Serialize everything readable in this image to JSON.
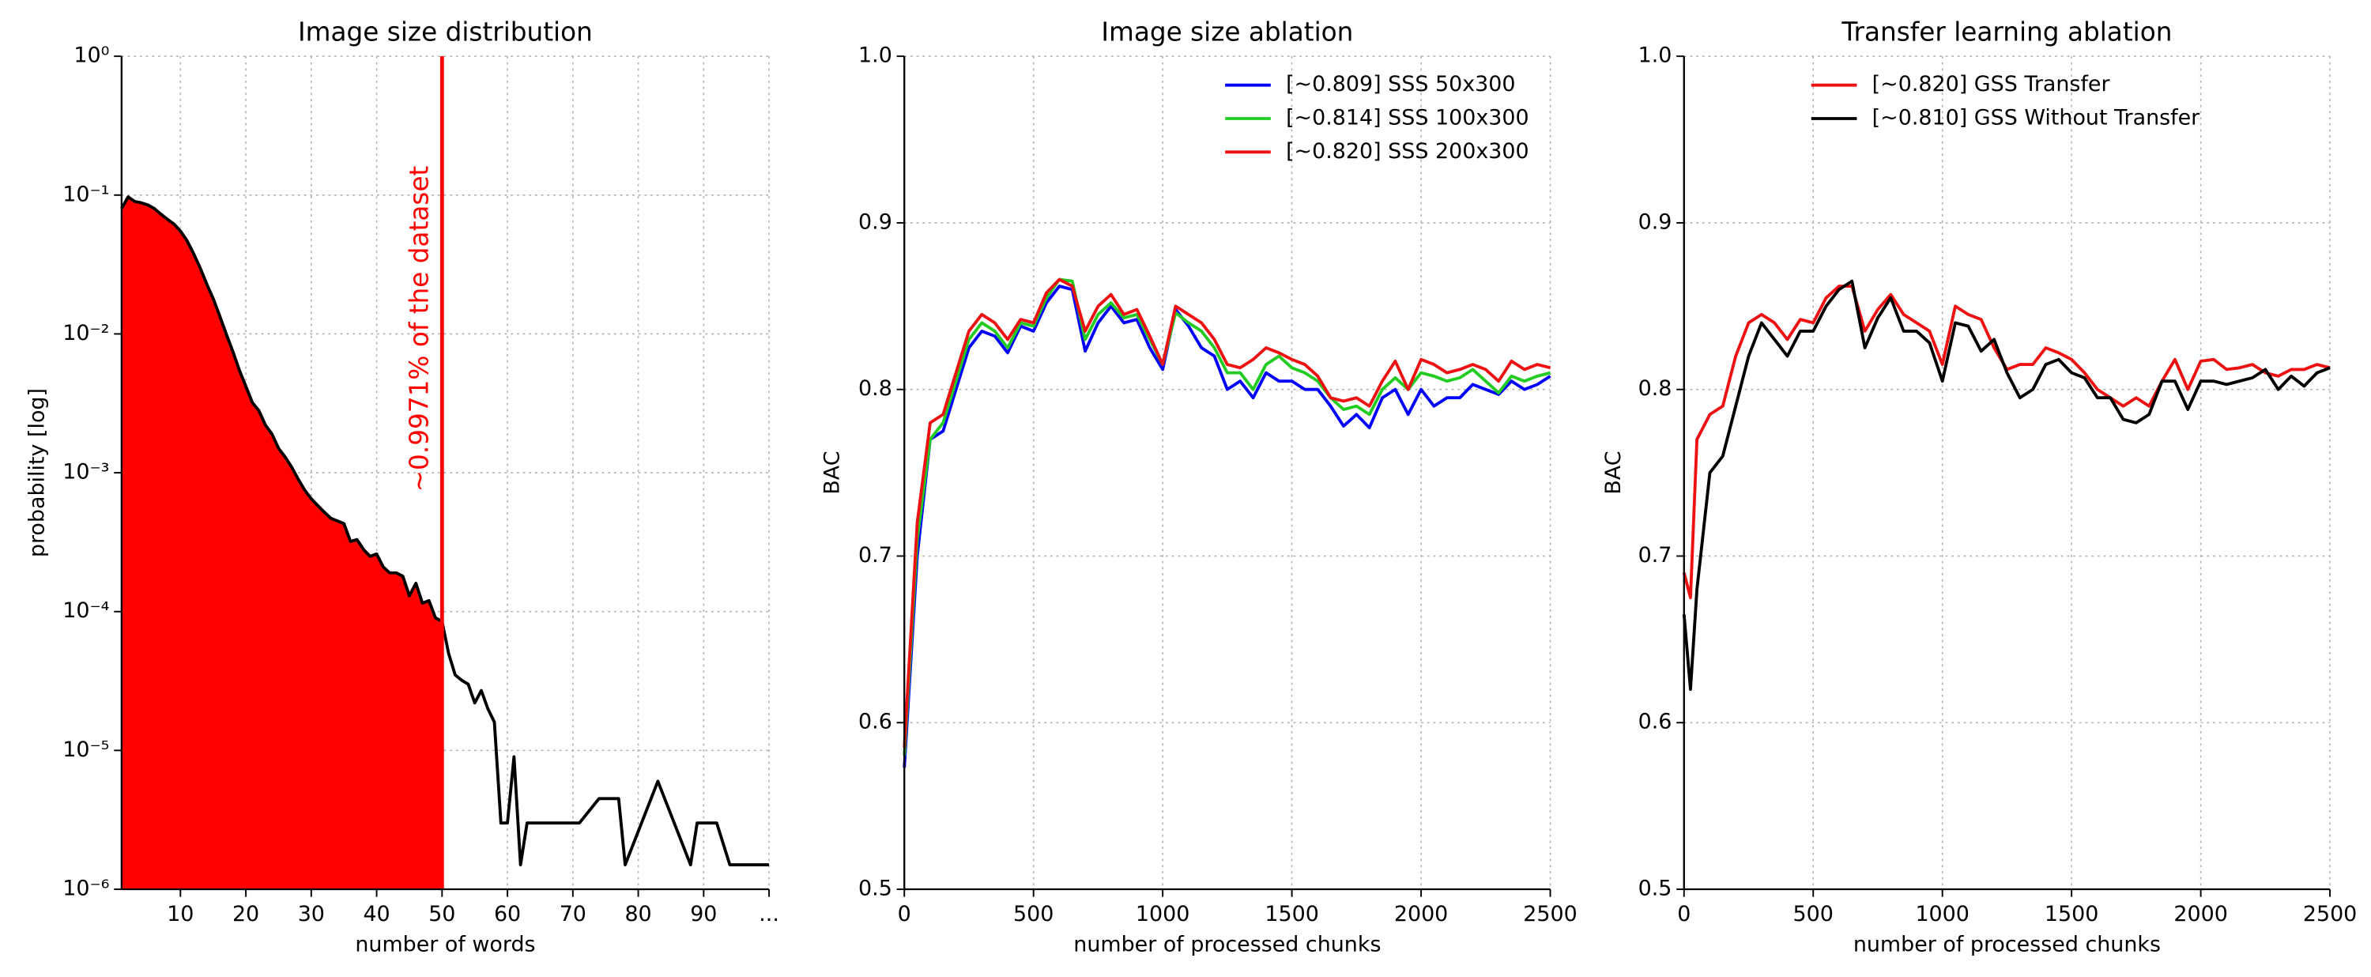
{
  "chart_data": [
    {
      "type": "line",
      "title": "Image size distribution",
      "xlabel": "number of words",
      "ylabel": "probability [log]",
      "yscale": "log",
      "grid": true,
      "xlim": [
        1,
        100
      ],
      "xticks": [
        10,
        20,
        30,
        40,
        50,
        60,
        70,
        80,
        90,
        {
          "value": 100,
          "label": "..."
        }
      ],
      "ylim": [
        1e-06,
        1
      ],
      "yticks": [
        {
          "value": 1e-06,
          "label": "10⁻⁶"
        },
        {
          "value": 1e-05,
          "label": "10⁻⁵"
        },
        {
          "value": 0.0001,
          "label": "10⁻⁴"
        },
        {
          "value": 0.001,
          "label": "10⁻³"
        },
        {
          "value": 0.01,
          "label": "10⁻²"
        },
        {
          "value": 0.1,
          "label": "10⁻¹"
        },
        {
          "value": 1,
          "label": "10⁰"
        }
      ],
      "fill_until": 50,
      "fill_color": "#ff0000",
      "vline": {
        "x": 50,
        "color": "#ff0000",
        "label": "~0.9971% of the dataset"
      },
      "x": [
        1,
        2,
        3,
        4,
        5,
        6,
        7,
        8,
        9,
        10,
        11,
        12,
        13,
        14,
        15,
        16,
        17,
        18,
        19,
        20,
        21,
        22,
        23,
        24,
        25,
        26,
        27,
        28,
        29,
        30,
        31,
        32,
        33,
        34,
        35,
        36,
        37,
        38,
        39,
        40,
        41,
        42,
        43,
        44,
        45,
        46,
        47,
        48,
        49,
        50,
        51,
        52,
        53,
        54,
        55,
        56,
        57,
        58,
        59,
        60,
        61,
        62,
        63,
        64,
        71,
        74,
        77,
        78,
        83,
        88,
        89,
        92,
        94,
        100
      ],
      "series": [
        {
          "color": "#000000",
          "values": [
            0.08,
            0.097,
            0.09,
            0.088,
            0.085,
            0.08,
            0.073,
            0.067,
            0.062,
            0.055,
            0.047,
            0.038,
            0.03,
            0.023,
            0.018,
            0.0135,
            0.01,
            0.0075,
            0.0055,
            0.0042,
            0.0032,
            0.0028,
            0.0022,
            0.0019,
            0.0015,
            0.0013,
            0.0011,
            0.0009,
            0.00075,
            0.00065,
            0.00058,
            0.00052,
            0.00047,
            0.00045,
            0.00043,
            0.00032,
            0.00033,
            0.00028,
            0.00025,
            0.00026,
            0.00021,
            0.00019,
            0.00019,
            0.00018,
            0.00013,
            0.00016,
            0.000115,
            0.00012,
            9e-05,
            8.5e-05,
            5e-05,
            3.5e-05,
            3.2e-05,
            3e-05,
            2.2e-05,
            2.7e-05,
            2e-05,
            1.6e-05,
            3e-06,
            3e-06,
            9e-06,
            1.5e-06,
            3e-06,
            3e-06,
            3e-06,
            4.5e-06,
            4.5e-06,
            1.5e-06,
            6e-06,
            1.5e-06,
            3e-06,
            3e-06,
            1.5e-06,
            1.5e-06
          ]
        }
      ]
    },
    {
      "type": "line",
      "title": "Image size ablation",
      "xlabel": "number of processed chunks",
      "ylabel": "BAC",
      "grid": true,
      "legend": "upper right",
      "xlim": [
        0,
        2500
      ],
      "xticks": [
        0,
        500,
        1000,
        1500,
        2000,
        2500
      ],
      "ylim": [
        0.5,
        1
      ],
      "yticks": [
        0.5,
        0.6,
        0.7,
        0.8,
        0.9,
        {
          "value": 1,
          "label": "1.0"
        }
      ],
      "x": [
        0,
        50,
        100,
        150,
        200,
        250,
        300,
        350,
        400,
        450,
        500,
        550,
        600,
        650,
        700,
        750,
        800,
        850,
        900,
        950,
        1000,
        1050,
        1100,
        1150,
        1200,
        1250,
        1300,
        1350,
        1400,
        1450,
        1500,
        1550,
        1600,
        1650,
        1700,
        1750,
        1800,
        1850,
        1900,
        1950,
        2000,
        2050,
        2100,
        2150,
        2200,
        2250,
        2300,
        2350,
        2400,
        2450,
        2500
      ],
      "series": [
        {
          "name": "[~0.809] SSS 50x300",
          "color": "#0000ff",
          "values": [
            0.573,
            0.7,
            0.77,
            0.775,
            0.8,
            0.825,
            0.835,
            0.832,
            0.822,
            0.838,
            0.835,
            0.852,
            0.862,
            0.86,
            0.823,
            0.84,
            0.85,
            0.84,
            0.842,
            0.825,
            0.812,
            0.848,
            0.838,
            0.825,
            0.82,
            0.8,
            0.805,
            0.795,
            0.81,
            0.805,
            0.805,
            0.8,
            0.8,
            0.79,
            0.778,
            0.785,
            0.777,
            0.795,
            0.8,
            0.785,
            0.8,
            0.79,
            0.795,
            0.795,
            0.803,
            0.8,
            0.797,
            0.805,
            0.8,
            0.803,
            0.808
          ]
        },
        {
          "name": "[~0.814] SSS 100x300",
          "color": "#22cc22",
          "values": [
            0.58,
            0.71,
            0.77,
            0.78,
            0.805,
            0.83,
            0.84,
            0.835,
            0.825,
            0.84,
            0.838,
            0.855,
            0.866,
            0.865,
            0.83,
            0.845,
            0.852,
            0.843,
            0.845,
            0.83,
            0.815,
            0.846,
            0.84,
            0.835,
            0.825,
            0.81,
            0.81,
            0.8,
            0.815,
            0.82,
            0.813,
            0.81,
            0.805,
            0.795,
            0.788,
            0.79,
            0.785,
            0.8,
            0.807,
            0.8,
            0.81,
            0.808,
            0.805,
            0.807,
            0.812,
            0.805,
            0.798,
            0.808,
            0.805,
            0.808,
            0.81
          ]
        },
        {
          "name": "[~0.820] SSS 200x300",
          "color": "#ee1111",
          "values": [
            0.585,
            0.72,
            0.78,
            0.785,
            0.81,
            0.835,
            0.845,
            0.84,
            0.83,
            0.842,
            0.84,
            0.858,
            0.866,
            0.862,
            0.835,
            0.85,
            0.857,
            0.845,
            0.848,
            0.832,
            0.815,
            0.85,
            0.845,
            0.84,
            0.83,
            0.815,
            0.813,
            0.818,
            0.825,
            0.822,
            0.818,
            0.815,
            0.808,
            0.795,
            0.793,
            0.795,
            0.79,
            0.805,
            0.817,
            0.8,
            0.818,
            0.815,
            0.81,
            0.812,
            0.815,
            0.812,
            0.805,
            0.817,
            0.812,
            0.815,
            0.813
          ]
        }
      ]
    },
    {
      "type": "line",
      "title": "Transfer learning ablation",
      "xlabel": "number of processed chunks",
      "ylabel": "BAC",
      "grid": true,
      "legend": "upper center",
      "xlim": [
        0,
        2500
      ],
      "xticks": [
        0,
        500,
        1000,
        1500,
        2000,
        2500
      ],
      "ylim": [
        0.5,
        1
      ],
      "yticks": [
        0.5,
        0.6,
        0.7,
        0.8,
        0.9,
        {
          "value": 1,
          "label": "1.0"
        }
      ],
      "x": [
        0,
        25,
        50,
        100,
        150,
        200,
        250,
        300,
        350,
        400,
        450,
        500,
        550,
        600,
        650,
        700,
        750,
        800,
        850,
        900,
        950,
        1000,
        1050,
        1100,
        1150,
        1200,
        1250,
        1300,
        1350,
        1400,
        1450,
        1500,
        1550,
        1600,
        1650,
        1700,
        1750,
        1800,
        1850,
        1900,
        1950,
        2000,
        2050,
        2100,
        2150,
        2200,
        2250,
        2300,
        2350,
        2400,
        2450,
        2500
      ],
      "series": [
        {
          "name": "[~0.820] GSS Transfer",
          "color": "#ee1111",
          "values": [
            0.69,
            0.675,
            0.77,
            0.785,
            0.79,
            0.82,
            0.84,
            0.845,
            0.84,
            0.83,
            0.842,
            0.84,
            0.855,
            0.862,
            0.862,
            0.835,
            0.848,
            0.857,
            0.845,
            0.84,
            0.835,
            0.815,
            0.85,
            0.845,
            0.842,
            0.825,
            0.812,
            0.815,
            0.815,
            0.825,
            0.822,
            0.818,
            0.81,
            0.8,
            0.795,
            0.79,
            0.795,
            0.79,
            0.805,
            0.818,
            0.8,
            0.817,
            0.818,
            0.812,
            0.813,
            0.815,
            0.81,
            0.808,
            0.812,
            0.812,
            0.815,
            0.813
          ]
        },
        {
          "name": "[~0.810] GSS Without Transfer",
          "color": "#000000",
          "values": [
            0.665,
            0.62,
            0.68,
            0.75,
            0.76,
            0.79,
            0.82,
            0.84,
            0.83,
            0.82,
            0.835,
            0.835,
            0.85,
            0.86,
            0.865,
            0.825,
            0.843,
            0.855,
            0.835,
            0.835,
            0.828,
            0.805,
            0.84,
            0.838,
            0.823,
            0.83,
            0.81,
            0.795,
            0.8,
            0.815,
            0.818,
            0.81,
            0.807,
            0.795,
            0.795,
            0.782,
            0.78,
            0.785,
            0.805,
            0.805,
            0.788,
            0.805,
            0.805,
            0.803,
            0.805,
            0.807,
            0.812,
            0.8,
            0.808,
            0.802,
            0.81,
            0.813
          ]
        }
      ]
    }
  ]
}
